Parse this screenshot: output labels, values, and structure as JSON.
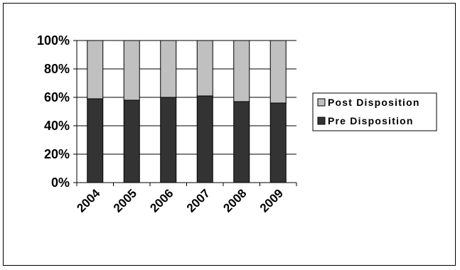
{
  "chart_data": {
    "type": "bar",
    "stacked": true,
    "percent_stacked": true,
    "categories": [
      "2004",
      "2005",
      "2006",
      "2007",
      "2008",
      "2009"
    ],
    "series": [
      {
        "name": "Pre Disposition",
        "values": [
          59,
          58,
          60,
          61,
          57,
          56
        ],
        "color": "#333333"
      },
      {
        "name": "Post Disposition",
        "values": [
          41,
          42,
          40,
          39,
          43,
          44
        ],
        "color": "#c0c0c0"
      }
    ],
    "y_ticks": [
      "0%",
      "20%",
      "40%",
      "60%",
      "80%",
      "100%"
    ],
    "ylim": [
      0,
      100
    ],
    "grid": true,
    "legend_position": "right",
    "legend_order": [
      "Post Disposition",
      "Pre Disposition"
    ]
  }
}
